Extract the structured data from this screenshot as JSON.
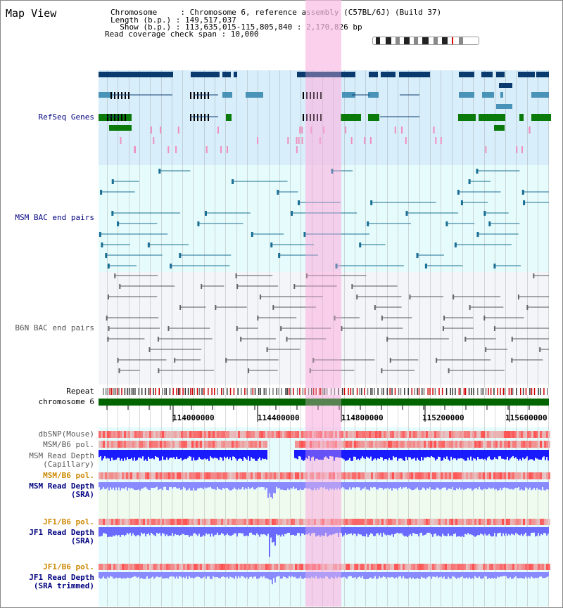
{
  "app": {
    "title": "Map View"
  },
  "header": {
    "chromosome_line": "Chromosome     : Chromosome 6, reference assembly (C57BL/6J) (Build 37)",
    "length_line": "Length (b.p.) : 149,517,037",
    "show_line": "  Show (b.p.) : 113,635,015-115,805,840 : 2,170,826 bp",
    "coverage_line": "Read coverage check span : 10,000"
  },
  "tracks": {
    "refseq": "RefSeq Genes",
    "msm_bac": "MSM BAC end pairs",
    "b6n_bac": "B6N BAC end pairs",
    "repeat": "Repeat",
    "chromosome": "chromosome 6",
    "dbsnp": "dbSNP(Mouse)",
    "msm_b6_pol": "MSM/B6 pol.",
    "msm_depth_cap": "MSM Read Depth\n(Capillary)",
    "msm_b6_pol_2": "MSM/B6 pol.",
    "msm_depth_sra": "MSM Read Depth\n(SRA)",
    "jf1_b6_pol": "JF1/B6 pol.",
    "jf1_depth_sra": "JF1 Read Depth\n(SRA)",
    "jf1_b6_pol_2": "JF1/B6 pol.",
    "jf1_depth_trim": "JF1 Read Depth\n(SRA trimmed)"
  },
  "axis": {
    "ticks": [
      "114000000",
      "114400000",
      "114800000",
      "115200000",
      "115600000"
    ]
  },
  "colors": {
    "refseq_bg": "#d8eefa",
    "msm_bg": "#e6fbfb",
    "b6n_bg": "#f3f5f8",
    "highlight": "#f9d4ef",
    "chrom": "#006400",
    "depth_blue": "#1a1aff",
    "depth_light": "#8a8aff",
    "pol_red": "#e83030"
  }
}
